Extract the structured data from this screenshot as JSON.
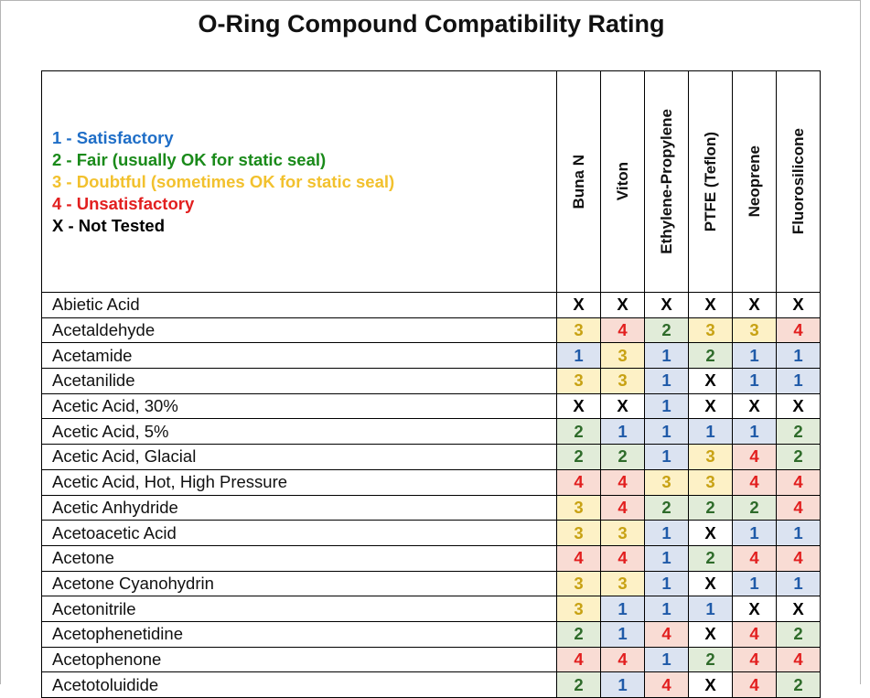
{
  "title": "O-Ring Compound Compatibility Rating",
  "legend": [
    {
      "text": "1 - Satisfactory",
      "color": "#1f6ec7"
    },
    {
      "text": "2 - Fair (usually OK for static seal)",
      "color": "#1a8a1a"
    },
    {
      "text": "3 - Doubtful (sometimes OK for static seal)",
      "color": "#f2c12e"
    },
    {
      "text": "4 - Unsatisfactory",
      "color": "#e21f1f"
    },
    {
      "text": "X -  Not Tested",
      "color": "#000000"
    }
  ],
  "columns": [
    "Buna N",
    "Viton",
    "Ethylene-Propylene",
    "PTFE (Teflon)",
    "Neoprene",
    "Fluorosilicone"
  ],
  "rows": [
    {
      "name": "Abietic Acid",
      "values": [
        "X",
        "X",
        "X",
        "X",
        "X",
        "X"
      ]
    },
    {
      "name": "Acetaldehyde",
      "values": [
        "3",
        "4",
        "2",
        "3",
        "3",
        "4"
      ]
    },
    {
      "name": "Acetamide",
      "values": [
        "1",
        "3",
        "1",
        "2",
        "1",
        "1"
      ]
    },
    {
      "name": "Acetanilide",
      "values": [
        "3",
        "3",
        "1",
        "X",
        "1",
        "1"
      ]
    },
    {
      "name": "Acetic Acid, 30%",
      "values": [
        "X",
        "X",
        "1",
        "X",
        "X",
        "X"
      ]
    },
    {
      "name": "Acetic Acid, 5%",
      "values": [
        "2",
        "1",
        "1",
        "1",
        "1",
        "2"
      ]
    },
    {
      "name": "Acetic Acid, Glacial",
      "values": [
        "2",
        "2",
        "1",
        "3",
        "4",
        "2"
      ]
    },
    {
      "name": "Acetic Acid, Hot, High Pressure",
      "values": [
        "4",
        "4",
        "3",
        "3",
        "4",
        "4"
      ]
    },
    {
      "name": "Acetic Anhydride",
      "values": [
        "3",
        "4",
        "2",
        "2",
        "2",
        "4"
      ]
    },
    {
      "name": "Acetoacetic Acid",
      "values": [
        "3",
        "3",
        "1",
        "X",
        "1",
        "1"
      ]
    },
    {
      "name": "Acetone",
      "values": [
        "4",
        "4",
        "1",
        "2",
        "4",
        "4"
      ]
    },
    {
      "name": "Acetone Cyanohydrin",
      "values": [
        "3",
        "3",
        "1",
        "X",
        "1",
        "1"
      ]
    },
    {
      "name": "Acetonitrile",
      "values": [
        "3",
        "1",
        "1",
        "1",
        "X",
        "X"
      ]
    },
    {
      "name": "Acetophenetidine",
      "values": [
        "2",
        "1",
        "4",
        "X",
        "4",
        "2"
      ]
    },
    {
      "name": "Acetophenone",
      "values": [
        "4",
        "4",
        "1",
        "2",
        "4",
        "4"
      ]
    },
    {
      "name": "Acetotoluidide",
      "values": [
        "2",
        "1",
        "4",
        "X",
        "4",
        "2"
      ]
    }
  ]
}
